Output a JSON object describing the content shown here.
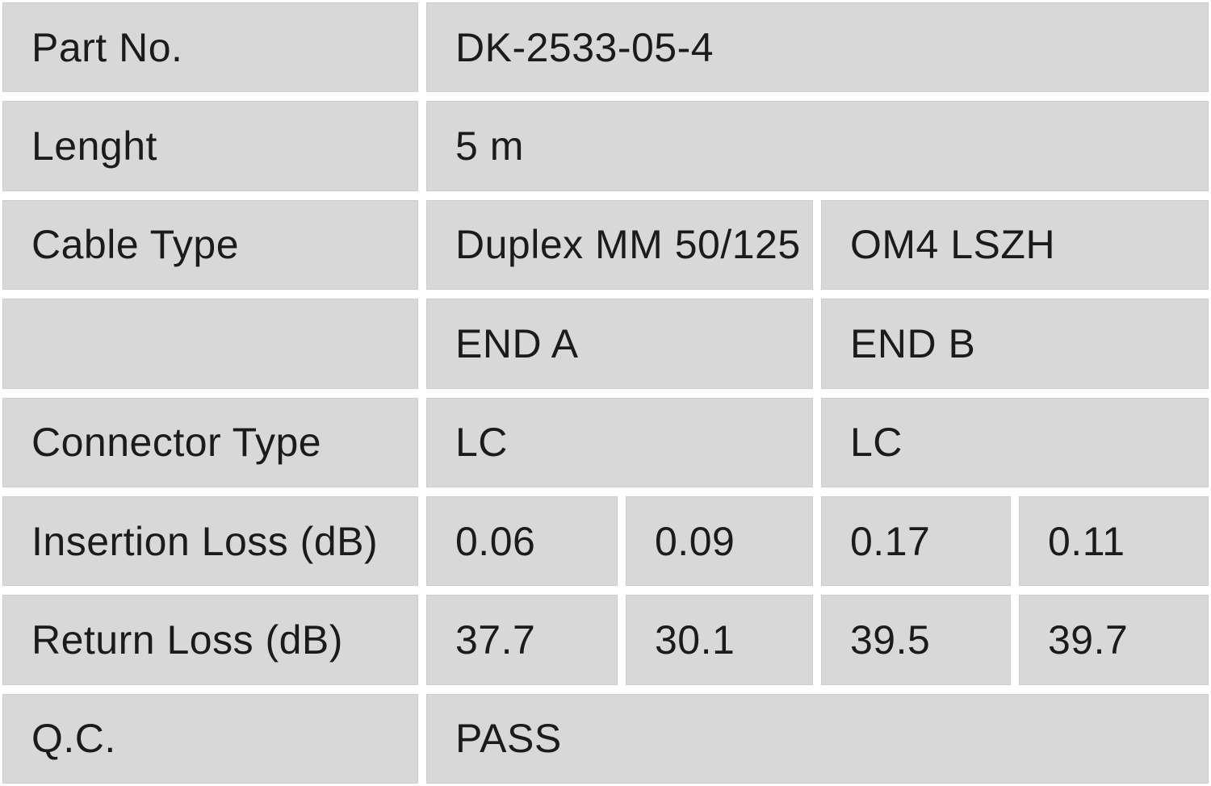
{
  "table": {
    "colors": {
      "cell_background": "#d8d8d8",
      "gap_background": "#ffffff",
      "text": "#1b1b1b"
    },
    "rows": {
      "part_no": {
        "label": "Part No.",
        "value": "DK-2533-05-4"
      },
      "length": {
        "label": "Lenght",
        "value": "5 m"
      },
      "cable_type": {
        "label": "Cable Type",
        "value_a": "Duplex MM 50/125",
        "value_b": "OM4 LSZH"
      },
      "ends": {
        "label": "",
        "end_a": "END A",
        "end_b": "END B"
      },
      "connector_type": {
        "label": "Connector Type",
        "end_a": "LC",
        "end_b": "LC"
      },
      "insertion_loss": {
        "label": "Insertion Loss (dB)",
        "values": [
          "0.06",
          "0.09",
          "0.17",
          "0.11"
        ]
      },
      "return_loss": {
        "label": "Return Loss (dB)",
        "values": [
          "37.7",
          "30.1",
          "39.5",
          "39.7"
        ]
      },
      "qc": {
        "label": "Q.C.",
        "value": "PASS"
      }
    }
  }
}
